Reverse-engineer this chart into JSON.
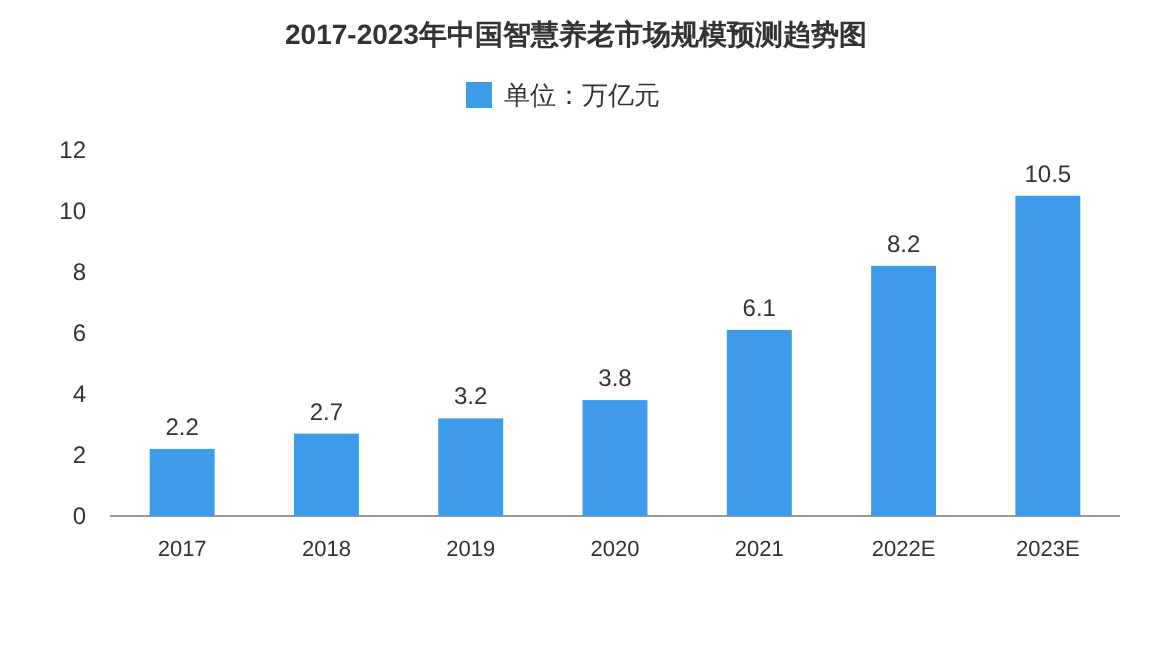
{
  "chart_data": {
    "type": "bar",
    "title": "2017-2023年中国智慧养老市场规模预测趋势图",
    "categories": [
      "2017",
      "2018",
      "2019",
      "2020",
      "2021",
      "2022E",
      "2023E"
    ],
    "series": [
      {
        "name": "单位：万亿元",
        "color": "#3d9be9",
        "values": [
          2.2,
          2.7,
          3.2,
          3.8,
          6.1,
          8.2,
          10.5
        ]
      }
    ],
    "ylim": [
      0,
      12
    ],
    "yticks": [
      0,
      2,
      4,
      6,
      8,
      10,
      12
    ],
    "data_labels": true,
    "legend": "top"
  }
}
